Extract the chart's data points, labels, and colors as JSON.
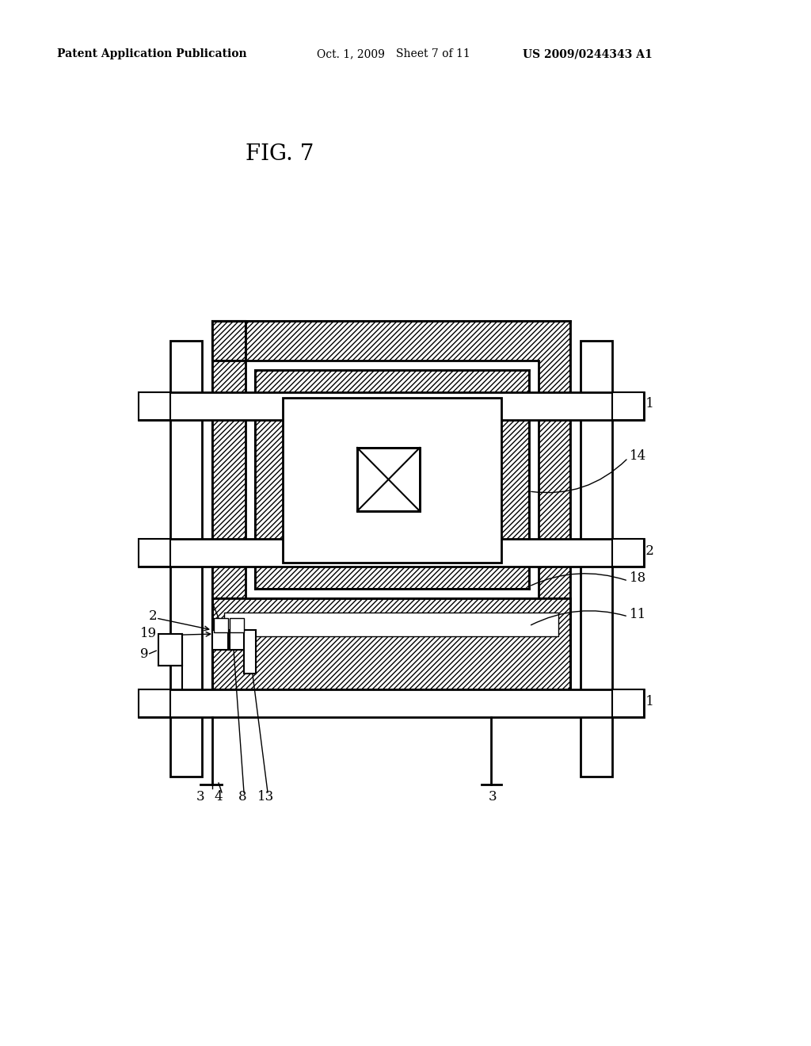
{
  "bg_color": "#ffffff",
  "line_color": "#000000",
  "header_left": "Patent Application Publication",
  "header_mid": "Oct. 1, 2009   Sheet 7 of 11",
  "header_right": "US 2009/0244343 A1",
  "title": "FIG. 7"
}
